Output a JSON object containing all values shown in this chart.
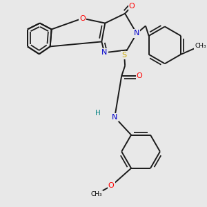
{
  "bg_color": "#e8e8e8",
  "atom_colors": {
    "C": "#000000",
    "N": "#0000cc",
    "O": "#ff0000",
    "S": "#ccaa00",
    "H": "#008080"
  },
  "bond_color": "#1a1a1a",
  "bond_width": 1.4,
  "figsize": [
    3.0,
    3.0
  ],
  "dpi": 100
}
